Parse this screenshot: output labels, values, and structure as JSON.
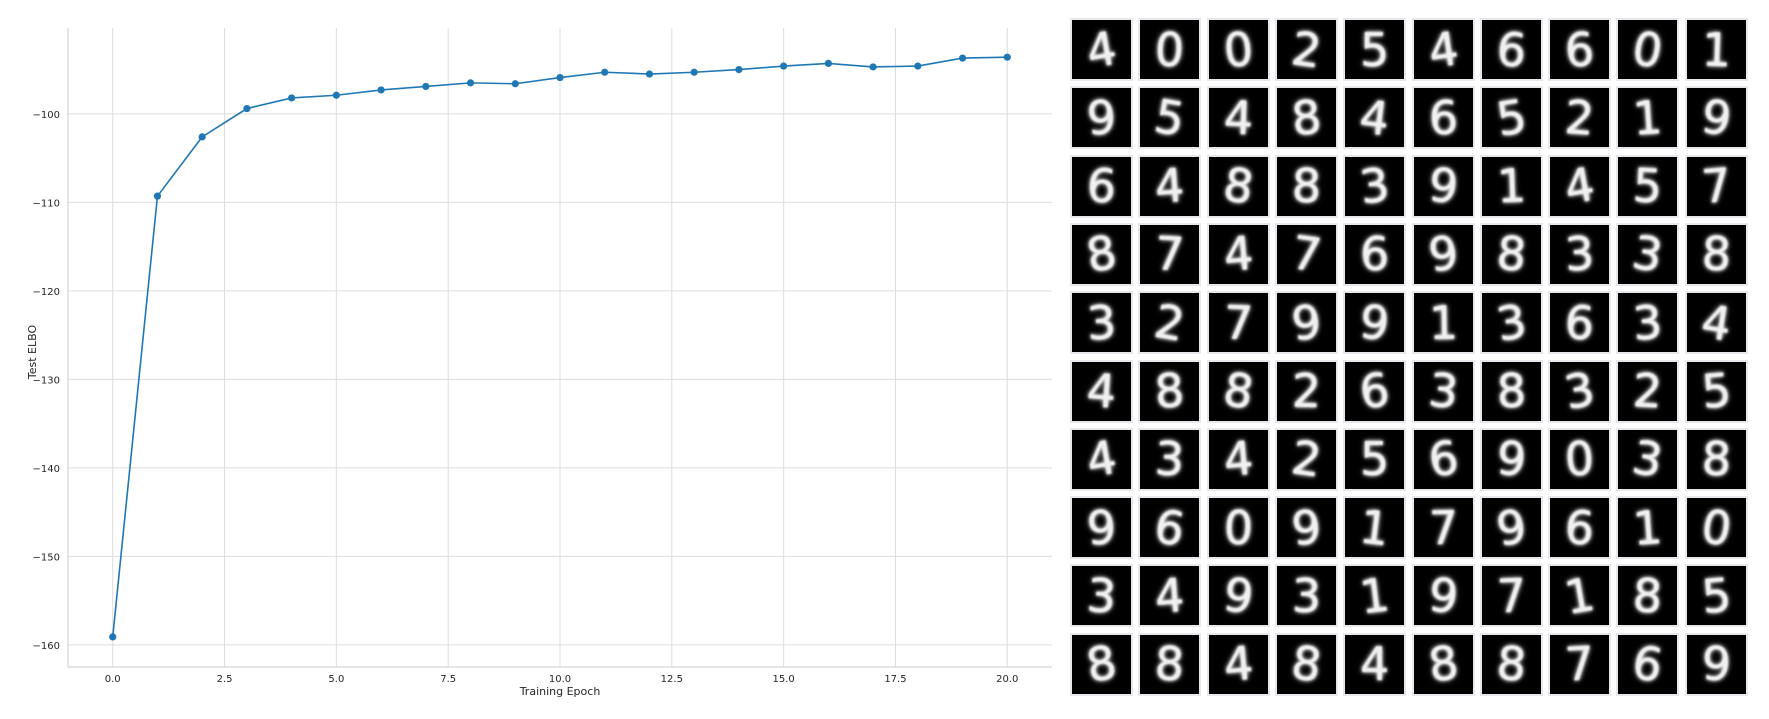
{
  "chart_data": {
    "type": "line",
    "xlabel": "Training Epoch",
    "ylabel": "Test ELBO",
    "xlim": [
      -1,
      21
    ],
    "ylim": [
      -162.5,
      -90.3
    ],
    "x_ticks": [
      0.0,
      2.5,
      5.0,
      7.5,
      10.0,
      12.5,
      15.0,
      17.5,
      20.0
    ],
    "x_tick_labels": [
      "0.0",
      "2.5",
      "5.0",
      "7.5",
      "10.0",
      "12.5",
      "15.0",
      "17.5",
      "20.0"
    ],
    "y_ticks": [
      -160,
      -150,
      -140,
      -130,
      -120,
      -110,
      -100
    ],
    "y_tick_labels": [
      "−160",
      "−150",
      "−140",
      "−130",
      "−120",
      "−110",
      "−100"
    ],
    "grid": true,
    "color": "#1f77b4",
    "series": [
      {
        "x": [
          0,
          1,
          2,
          3,
          4,
          5,
          6,
          7,
          8,
          9,
          10,
          11,
          12,
          13,
          14,
          15,
          16,
          17,
          18,
          19,
          20
        ],
        "y": [
          -159.1,
          -109.3,
          -102.6,
          -99.4,
          -98.2,
          -97.9,
          -97.3,
          -96.9,
          -96.5,
          -96.6,
          -95.9,
          -95.3,
          -95.5,
          -95.3,
          -95.0,
          -94.6,
          -94.3,
          -94.7,
          -94.6,
          -93.7,
          -93.6
        ]
      }
    ]
  },
  "digit_grid": {
    "rows": [
      [
        "4",
        "0",
        "0",
        "2",
        "5",
        "4",
        "6",
        "6",
        "0",
        "1"
      ],
      [
        "9",
        "5",
        "4",
        "8",
        "4",
        "6",
        "5",
        "2",
        "1",
        "9"
      ],
      [
        "6",
        "4",
        "8",
        "8",
        "3",
        "9",
        "1",
        "4",
        "5",
        "7"
      ],
      [
        "8",
        "7",
        "4",
        "7",
        "6",
        "9",
        "8",
        "3",
        "3",
        "8"
      ],
      [
        "3",
        "2",
        "7",
        "9",
        "9",
        "1",
        "3",
        "6",
        "3",
        "4"
      ],
      [
        "4",
        "8",
        "8",
        "2",
        "6",
        "3",
        "8",
        "3",
        "2",
        "5"
      ],
      [
        "4",
        "3",
        "4",
        "2",
        "5",
        "6",
        "9",
        "0",
        "3",
        "8"
      ],
      [
        "9",
        "6",
        "0",
        "9",
        "1",
        "7",
        "9",
        "6",
        "1",
        "0"
      ],
      [
        "3",
        "4",
        "9",
        "3",
        "1",
        "9",
        "7",
        "1",
        "8",
        "5"
      ],
      [
        "8",
        "8",
        "4",
        "8",
        "4",
        "8",
        "8",
        "7",
        "6",
        "9"
      ]
    ]
  }
}
